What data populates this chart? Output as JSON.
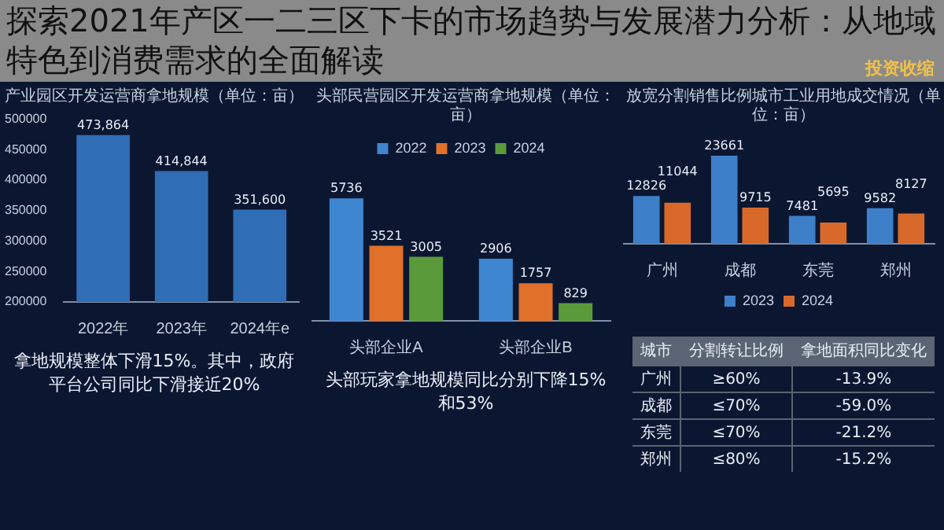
{
  "chart_data": [
    {
      "type": "other",
      "title": "探索2021年产区一二三区下卡的市场趋势与发展潜力分析：从地域特色到消费需求的全面解读",
      "annotations": [
        "投资收缩"
      ]
    },
    {
      "type": "bar",
      "title": "产业园区开发运营商拿地规模（单位：亩）",
      "categories": [
        "2022年",
        "2023年",
        "2024年e"
      ],
      "values": [
        473864,
        414844,
        351600
      ],
      "value_labels": [
        "473,864",
        "414,844",
        "351,600"
      ],
      "color": "#2f6db5",
      "ylim": [
        200000,
        500000
      ],
      "yticks": [
        200000,
        250000,
        300000,
        350000,
        400000,
        450000,
        500000
      ],
      "annotations": [
        "拿地规模整体下滑15%。其中，政府平台公司同比下滑接近20%"
      ]
    },
    {
      "type": "bar",
      "title": "头部民营园区开发运营商拿地规模（单位：亩）",
      "categories": [
        "头部企业A",
        "头部企业B"
      ],
      "legend": "top",
      "data_labels": true,
      "tick_labels": "x",
      "series": [
        {
          "name": "2022",
          "color": "#3f86d0",
          "values": [
            5736,
            2906
          ]
        },
        {
          "name": "2023",
          "color": "#e0702a",
          "values": [
            3521,
            1757
          ]
        },
        {
          "name": "2024",
          "color": "#5a9a3a",
          "values": [
            3005,
            829
          ]
        }
      ],
      "annotations": [
        "头部玩家拿地规模同比分别下降15%和53%"
      ]
    },
    {
      "type": "bar",
      "title": "放宽分割销售比例城市工业用地成交情况（单位：亩）",
      "categories": [
        "广州",
        "成都",
        "东莞",
        "郑州"
      ],
      "legend": "bottom",
      "data_labels": true,
      "tick_labels": "x",
      "series": [
        {
          "name": "2023",
          "color": "#3d7fc8",
          "values": [
            12826,
            23661,
            7481,
            9582
          ]
        },
        {
          "name": "2024",
          "color": "#d9692a",
          "values": [
            11044,
            9715,
            5695,
            8127
          ]
        }
      ]
    },
    {
      "type": "other",
      "categories": [
        "城市",
        "分割转让比例",
        "拿地面积同比变化"
      ],
      "cell_labels": [
        [
          "广州",
          "≥60%",
          "-13.9%"
        ],
        [
          "成都",
          "≤70%",
          "-59.0%"
        ],
        [
          "东莞",
          "≤70%",
          "-21.2%"
        ],
        [
          "郑州",
          "≤80%",
          "-15.2%"
        ]
      ]
    }
  ]
}
